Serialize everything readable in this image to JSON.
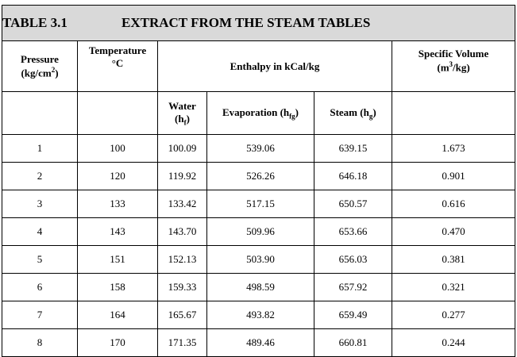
{
  "title": {
    "number": "TABLE 3.1",
    "text": "EXTRACT FROM THE STEAM TABLES"
  },
  "header": {
    "pressure": {
      "line1": "Pressure",
      "line2": "(kg/cm",
      "sup": "2",
      "close": ")"
    },
    "temperature": {
      "line1": "Temperature",
      "line2": "°C"
    },
    "enthalpy": "Enthalpy in kCal/kg",
    "volume": {
      "line1": "Specific Volume",
      "line2": "(m",
      "sup": "3",
      "close": "/kg)"
    },
    "water": {
      "line1": "Water",
      "line2": "(h",
      "sub": "f",
      "close": ")"
    },
    "evaporation": {
      "text": "Evaporation (h",
      "sub": "fg",
      "close": ")"
    },
    "steam": {
      "text": "Steam (h",
      "sub": "g",
      "close": ")"
    }
  },
  "table": {
    "rows": [
      [
        "1",
        "100",
        "100.09",
        "539.06",
        "639.15",
        "1.673"
      ],
      [
        "2",
        "120",
        "119.92",
        "526.26",
        "646.18",
        "0.901"
      ],
      [
        "3",
        "133",
        "133.42",
        "517.15",
        "650.57",
        "0.616"
      ],
      [
        "4",
        "143",
        "143.70",
        "509.96",
        "653.66",
        "0.470"
      ],
      [
        "5",
        "151",
        "152.13",
        "503.90",
        "656.03",
        "0.381"
      ],
      [
        "6",
        "158",
        "159.33",
        "498.59",
        "657.92",
        "0.321"
      ],
      [
        "7",
        "164",
        "165.67",
        "493.82",
        "659.49",
        "0.277"
      ],
      [
        "8",
        "170",
        "171.35",
        "489.46",
        "660.81",
        "0.244"
      ]
    ]
  }
}
